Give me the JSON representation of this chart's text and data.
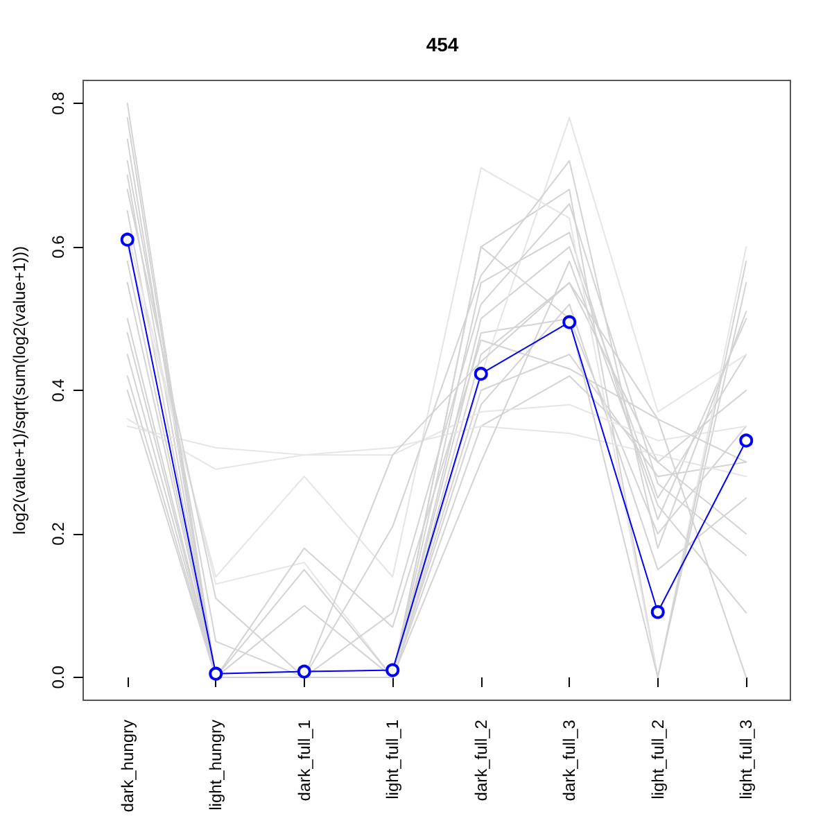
{
  "chart_data": {
    "type": "line",
    "title": "454",
    "ylabel": "log2(value+1)/sqrt(sum(log2(value+1)))",
    "categories": [
      "dark_hungry",
      "light_hungry",
      "dark_full_1",
      "light_full_1",
      "dark_full_2",
      "dark_full_3",
      "light_full_2",
      "light_full_3"
    ],
    "ylim": [
      -0.032,
      0.832
    ],
    "yticks": [
      {
        "value": 0,
        "label": "0.0"
      },
      {
        "value": 0.2,
        "label": "0.2"
      },
      {
        "value": 0.4,
        "label": "0.4"
      },
      {
        "value": 0.6,
        "label": "0.6"
      },
      {
        "value": 0.8,
        "label": "0.8"
      }
    ],
    "grid": false,
    "line_style": "solid",
    "series": [
      {
        "color": "#d3d3d3",
        "marker": "none",
        "values": [
          0.8,
          0,
          0,
          0,
          0.6,
          0.68,
          0,
          0.55
        ]
      },
      {
        "color": "#d3d3d3",
        "marker": "none",
        "values": [
          0.75,
          0,
          0,
          0,
          0.55,
          0.62,
          0.22,
          0.5
        ]
      },
      {
        "color": "#d3d3d3",
        "marker": "none",
        "values": [
          0.7,
          0,
          0,
          0,
          0.5,
          0.6,
          0.25,
          0.45
        ]
      },
      {
        "color": "#d3d3d3",
        "marker": "none",
        "values": [
          0.65,
          0,
          0,
          0,
          0.45,
          0.55,
          0.3,
          0.4
        ]
      },
      {
        "color": "#d3d3d3",
        "marker": "none",
        "values": [
          0.55,
          0,
          0,
          0,
          0.48,
          0.5,
          0.2,
          0.35
        ]
      },
      {
        "color": "#d3d3d3",
        "marker": "none",
        "values": [
          0.5,
          0,
          0,
          0,
          0.4,
          0.45,
          0.28,
          0.3
        ]
      },
      {
        "color": "#d3d3d3",
        "marker": "none",
        "values": [
          0.45,
          0,
          0,
          0,
          0.38,
          0.52,
          0.15,
          0.25
        ]
      },
      {
        "color": "#d3d3d3",
        "marker": "none",
        "values": [
          0.4,
          0,
          0,
          0,
          0.35,
          0.42,
          0.3,
          0.2
        ]
      },
      {
        "color": "#e5e5e5",
        "marker": "none",
        "values": [
          0.35,
          0.32,
          0.31,
          0.32,
          0.35,
          0.34,
          0.31,
          0.28
        ]
      },
      {
        "color": "#e5e5e5",
        "marker": "none",
        "values": [
          0.36,
          0.29,
          0.31,
          0.31,
          0.37,
          0.38,
          0.33,
          0.35
        ]
      },
      {
        "color": "#e5e5e5",
        "marker": "none",
        "values": [
          0.6,
          0.14,
          0.28,
          0.14,
          0.71,
          0.64,
          0,
          0.6
        ]
      },
      {
        "color": "#e5e5e5",
        "marker": "none",
        "values": [
          0.62,
          0.13,
          0.16,
          0,
          0.42,
          0.78,
          0.37,
          0.45
        ]
      },
      {
        "color": "#d3d3d3",
        "marker": "none",
        "values": [
          0.72,
          0.05,
          0,
          0.21,
          0.56,
          0.72,
          0.18,
          0.51
        ]
      },
      {
        "color": "#d3d3d3",
        "marker": "none",
        "values": [
          0.58,
          0,
          0.18,
          0.07,
          0.47,
          0.43,
          0.36,
          0
        ]
      },
      {
        "color": "#d3d3d3",
        "marker": "none",
        "values": [
          0.68,
          0.11,
          0,
          0.09,
          0.52,
          0.66,
          0.27,
          0.17
        ]
      },
      {
        "color": "#d3d3d3",
        "marker": "none",
        "values": [
          0.48,
          0,
          0.1,
          0,
          0.3,
          0.58,
          0.24,
          0.09
        ]
      },
      {
        "color": "#d3d3d3",
        "marker": "none",
        "values": [
          0.78,
          0,
          0.15,
          0,
          0.6,
          0.5,
          0,
          0.58
        ]
      },
      {
        "color": "#d3d3d3",
        "marker": "none",
        "values": [
          0.42,
          0,
          0,
          0.31,
          0.44,
          0.55,
          0.36,
          0.3
        ]
      },
      {
        "color": "#0000ff",
        "marker": "circle",
        "values": [
          0.61,
          0.005,
          0.008,
          0.01,
          0.423,
          0.495,
          0.091,
          0.33
        ]
      }
    ]
  }
}
